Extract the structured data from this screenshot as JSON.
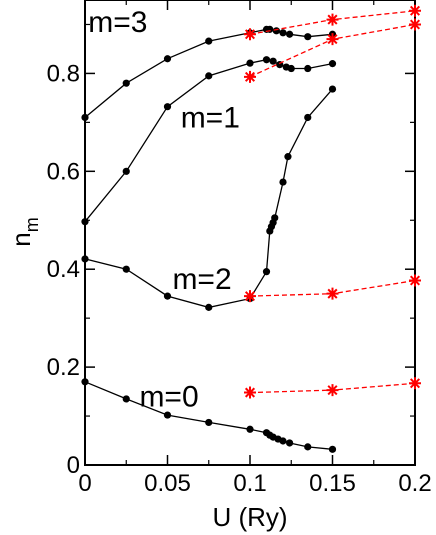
{
  "chart_data": {
    "type": "line",
    "xlabel": "U (Ry)",
    "ylabel": {
      "main": "n",
      "subscript": "m"
    },
    "xlim": [
      0,
      0.2
    ],
    "ylim": [
      0,
      0.95
    ],
    "xticks": [
      {
        "value": 0,
        "label": "0"
      },
      {
        "value": 0.05,
        "label": "0.05"
      },
      {
        "value": 0.1,
        "label": "0.1"
      },
      {
        "value": 0.15,
        "label": "0.15"
      },
      {
        "value": 0.2,
        "label": "0.2"
      }
    ],
    "yticks": [
      {
        "value": 0,
        "label": "0"
      },
      {
        "value": 0.2,
        "label": "0.2"
      },
      {
        "value": 0.4,
        "label": "0.4"
      },
      {
        "value": 0.6,
        "label": "0.6"
      },
      {
        "value": 0.8,
        "label": "0.8"
      }
    ],
    "grid": false,
    "colors": {
      "black": "#000000",
      "red": "#ff0000"
    },
    "series_labels": [
      {
        "text": "m=3",
        "x": 0.002,
        "y": 0.885
      },
      {
        "text": "m=1",
        "x": 0.058,
        "y": 0.69
      },
      {
        "text": "m=2",
        "x": 0.053,
        "y": 0.36
      },
      {
        "text": "m=0",
        "x": 0.033,
        "y": 0.12
      }
    ],
    "series": [
      {
        "group": "m=3",
        "color": "#000000",
        "marker": "circle",
        "line": "solid",
        "points": [
          [
            0,
            0.71
          ],
          [
            0.025,
            0.78
          ],
          [
            0.05,
            0.83
          ],
          [
            0.075,
            0.866
          ],
          [
            0.1,
            0.883
          ],
          [
            0.11,
            0.89
          ],
          [
            0.112,
            0.89
          ],
          [
            0.116,
            0.887
          ],
          [
            0.12,
            0.883
          ],
          [
            0.124,
            0.88
          ],
          [
            0.135,
            0.875
          ],
          [
            0.15,
            0.88
          ]
        ]
      },
      {
        "group": "m=1",
        "color": "#000000",
        "marker": "circle",
        "line": "solid",
        "points": [
          [
            0,
            0.497
          ],
          [
            0.025,
            0.6
          ],
          [
            0.05,
            0.732
          ],
          [
            0.075,
            0.795
          ],
          [
            0.1,
            0.821
          ],
          [
            0.11,
            0.828
          ],
          [
            0.114,
            0.825
          ],
          [
            0.118,
            0.818
          ],
          [
            0.122,
            0.813
          ],
          [
            0.125,
            0.81
          ],
          [
            0.135,
            0.81
          ],
          [
            0.15,
            0.82
          ]
        ]
      },
      {
        "group": "m=2",
        "color": "#000000",
        "marker": "circle",
        "line": "solid",
        "points": [
          [
            0,
            0.421
          ],
          [
            0.025,
            0.4
          ],
          [
            0.05,
            0.345
          ],
          [
            0.075,
            0.322
          ],
          [
            0.1,
            0.34
          ],
          [
            0.11,
            0.395
          ],
          [
            0.112,
            0.478
          ],
          [
            0.113,
            0.487
          ],
          [
            0.114,
            0.495
          ],
          [
            0.115,
            0.505
          ],
          [
            0.12,
            0.578
          ],
          [
            0.123,
            0.63
          ],
          [
            0.135,
            0.71
          ],
          [
            0.15,
            0.768
          ]
        ]
      },
      {
        "group": "m=0",
        "color": "#000000",
        "marker": "circle",
        "line": "solid",
        "points": [
          [
            0,
            0.17
          ],
          [
            0.025,
            0.135
          ],
          [
            0.05,
            0.102
          ],
          [
            0.075,
            0.087
          ],
          [
            0.1,
            0.073
          ],
          [
            0.11,
            0.066
          ],
          [
            0.112,
            0.061
          ],
          [
            0.114,
            0.057
          ],
          [
            0.117,
            0.053
          ],
          [
            0.12,
            0.049
          ],
          [
            0.124,
            0.045
          ],
          [
            0.135,
            0.037
          ],
          [
            0.15,
            0.032
          ]
        ]
      },
      {
        "group": "m=3",
        "color": "#ff0000",
        "marker": "star",
        "line": "dashed",
        "points": [
          [
            0.1,
            0.88
          ],
          [
            0.15,
            0.91
          ],
          [
            0.2,
            0.928
          ]
        ]
      },
      {
        "group": "m=1",
        "color": "#ff0000",
        "marker": "star",
        "line": "dashed",
        "points": [
          [
            0.1,
            0.793
          ],
          [
            0.15,
            0.87
          ],
          [
            0.2,
            0.9
          ]
        ]
      },
      {
        "group": "m=2",
        "color": "#ff0000",
        "marker": "star",
        "line": "dashed",
        "points": [
          [
            0.1,
            0.345
          ],
          [
            0.15,
            0.35
          ],
          [
            0.2,
            0.377
          ]
        ]
      },
      {
        "group": "m=0",
        "color": "#ff0000",
        "marker": "star",
        "line": "dashed",
        "points": [
          [
            0.1,
            0.148
          ],
          [
            0.15,
            0.153
          ],
          [
            0.2,
            0.167
          ]
        ]
      }
    ]
  }
}
